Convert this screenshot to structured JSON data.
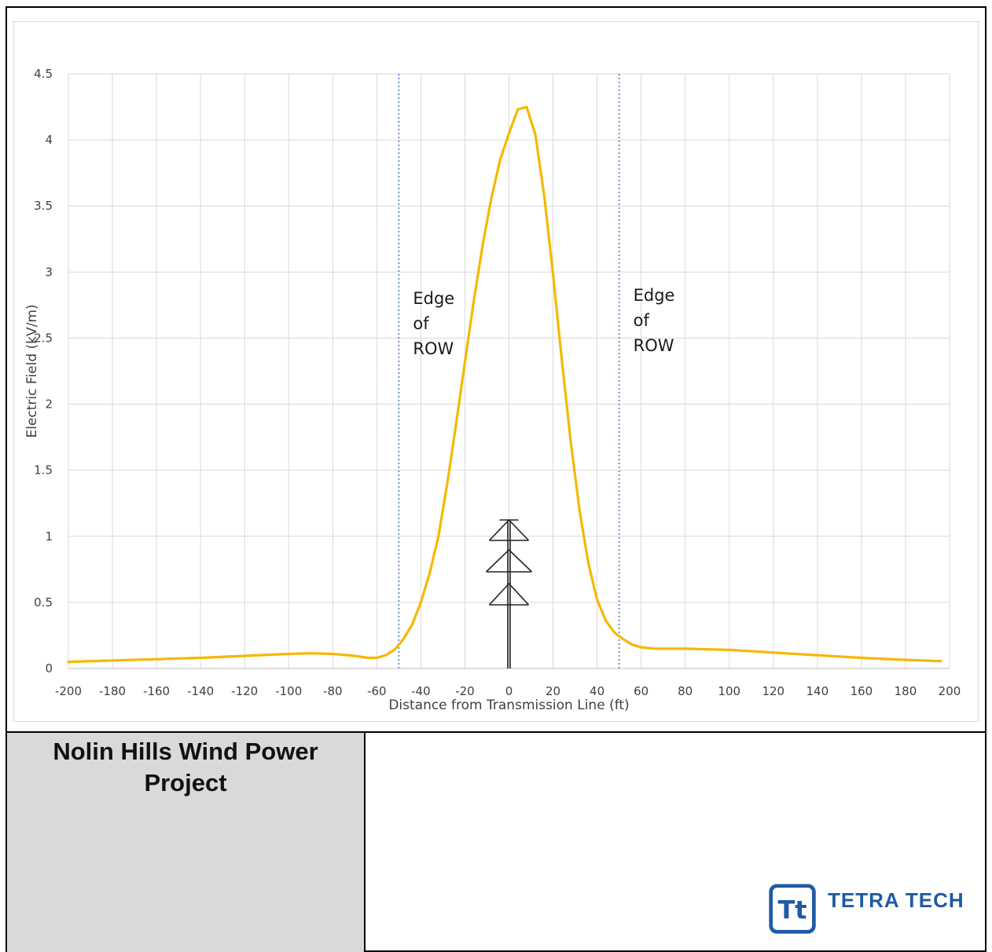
{
  "project": {
    "title": "Nolin Hills Wind Power\nProject"
  },
  "logo": {
    "mark": "Tt",
    "text": "TETRA TECH",
    "color": "#1f5aa6"
  },
  "chart_data": {
    "type": "line",
    "title": "",
    "xlabel": "Distance from Transmission Line (ft)",
    "ylabel": "Electric Field (kV/m)",
    "xlim": [
      -200,
      200
    ],
    "ylim": [
      0,
      4.5
    ],
    "x_ticks": [
      -200,
      -180,
      -160,
      -140,
      -120,
      -100,
      -80,
      -60,
      -40,
      -20,
      0,
      20,
      40,
      60,
      80,
      100,
      120,
      140,
      160,
      180,
      200
    ],
    "y_ticks": [
      0,
      0.5,
      1,
      1.5,
      2,
      2.5,
      3,
      3.5,
      4,
      4.5
    ],
    "grid": true,
    "line_color": "#f5b800",
    "series": [
      {
        "x": [
          -200,
          -180,
          -160,
          -140,
          -120,
          -100,
          -90,
          -80,
          -70,
          -64,
          -60,
          -56,
          -52,
          -48,
          -44,
          -40,
          -36,
          -32,
          -28,
          -24,
          -20,
          -16,
          -12,
          -8,
          -4,
          0,
          4,
          8,
          12,
          16,
          20,
          24,
          28,
          32,
          36,
          40,
          44,
          48,
          52,
          56,
          60,
          66,
          80,
          100,
          120,
          140,
          160,
          180,
          196
        ],
        "y": [
          0.05,
          0.06,
          0.07,
          0.08,
          0.095,
          0.11,
          0.115,
          0.11,
          0.095,
          0.08,
          0.08,
          0.1,
          0.14,
          0.22,
          0.33,
          0.5,
          0.72,
          1.0,
          1.4,
          1.85,
          2.32,
          2.78,
          3.2,
          3.56,
          3.85,
          4.05,
          4.23,
          4.25,
          4.04,
          3.58,
          2.98,
          2.33,
          1.72,
          1.2,
          0.8,
          0.52,
          0.36,
          0.27,
          0.22,
          0.18,
          0.16,
          0.15,
          0.15,
          0.14,
          0.12,
          0.1,
          0.08,
          0.065,
          0.055
        ]
      }
    ],
    "annotations": [
      {
        "text": "Edge\nof\nROW",
        "x": -50
      },
      {
        "text": "Edge\nof\nROW",
        "x": 50
      }
    ],
    "reference_lines": [
      {
        "x": -50,
        "style": "dotted",
        "color": "#4472c4"
      },
      {
        "x": 50,
        "style": "dotted",
        "color": "#4472c4"
      }
    ]
  }
}
